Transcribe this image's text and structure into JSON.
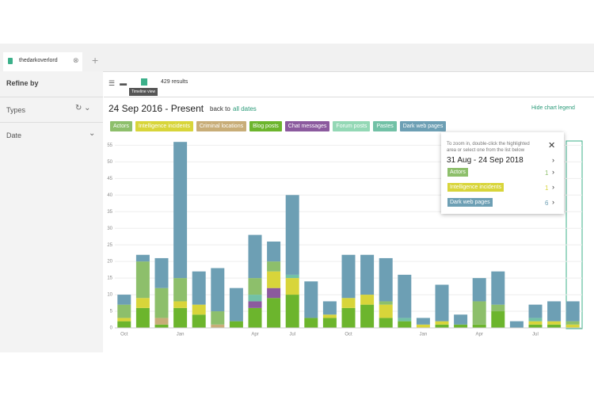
{
  "ui": {
    "tab": "thedarkoverlord",
    "refine_by": "Refine by",
    "filters": [
      "Types",
      "Date"
    ],
    "results": "429 results",
    "tooltip_hint": "Timeline view",
    "date_range": "24 Sep 2016 - Present",
    "back_to": "back to",
    "all_dates": "all dates",
    "hide_legend": "Hide chart legend",
    "popup": {
      "hint": "To zoom in, double-click the highlighted area or select one from the list below",
      "range": "31 Aug - 24 Sep 2018",
      "items": [
        {
          "label": "Actors",
          "count": "1"
        },
        {
          "label": "Intelligence incidents",
          "count": "1"
        },
        {
          "label": "Dark web pages",
          "count": "6"
        }
      ]
    }
  },
  "chart_data": {
    "type": "stacked-bar",
    "categories": [
      "Oct",
      null,
      null,
      "Jan",
      null,
      null,
      null,
      "Apr",
      null,
      "Jul",
      null,
      null,
      "Oct",
      null,
      null,
      null,
      "Jan",
      null,
      null,
      "Apr",
      null,
      null,
      "Jul",
      null,
      null
    ],
    "series": [
      {
        "name": "Actors",
        "color": "#8dbf6b",
        "values": [
          4,
          11,
          9,
          7,
          0,
          4,
          0,
          5,
          3,
          0,
          0,
          0,
          0,
          0,
          1,
          0,
          0,
          0,
          0,
          7,
          2,
          0,
          0,
          0,
          1
        ]
      },
      {
        "name": "Intelligence incidents",
        "color": "#d8d53a",
        "values": [
          1,
          3,
          0,
          2,
          3,
          0,
          0,
          0,
          5,
          5,
          0,
          1,
          3,
          3,
          4,
          0,
          1,
          1,
          0,
          0,
          0,
          0,
          1,
          1,
          1
        ]
      },
      {
        "name": "Criminal locations",
        "color": "#c8ad78",
        "values": [
          0,
          0,
          2,
          0,
          0,
          1,
          0,
          0,
          0,
          0,
          0,
          0,
          0,
          0,
          0,
          0,
          0,
          0,
          0,
          0,
          0,
          0,
          0,
          0,
          0
        ]
      },
      {
        "name": "Blog posts",
        "color": "#6cb52d",
        "values": [
          2,
          6,
          1,
          6,
          4,
          0,
          2,
          6,
          9,
          10,
          3,
          3,
          6,
          7,
          3,
          2,
          0,
          1,
          1,
          1,
          5,
          0,
          1,
          1,
          0
        ]
      },
      {
        "name": "Chat messages",
        "color": "#8b5a9e",
        "values": [
          0,
          0,
          0,
          0,
          0,
          0,
          0,
          2,
          3,
          0,
          0,
          0,
          0,
          0,
          0,
          0,
          0,
          0,
          0,
          0,
          0,
          0,
          0,
          0,
          0
        ]
      },
      {
        "name": "Forum posts",
        "color": "#93d8b5",
        "values": [
          0,
          0,
          0,
          0,
          0,
          0,
          0,
          0,
          0,
          0,
          0,
          0,
          0,
          0,
          0,
          0,
          0,
          0,
          0,
          0,
          0,
          0,
          0,
          0,
          0
        ]
      },
      {
        "name": "Pastes",
        "color": "#72c1a6",
        "values": [
          0,
          0,
          0,
          0,
          0,
          0,
          0,
          2,
          0,
          1,
          0,
          0,
          0,
          0,
          0,
          1,
          0,
          0,
          0,
          0,
          0,
          0,
          1,
          0,
          0
        ]
      },
      {
        "name": "Dark web pages",
        "color": "#6d9fb4",
        "values": [
          3,
          2,
          9,
          41,
          10,
          13,
          10,
          13,
          6,
          24,
          11,
          4,
          13,
          12,
          13,
          13,
          2,
          11,
          3,
          7,
          10,
          2,
          4,
          6,
          6
        ]
      }
    ],
    "stack_order": [
      3,
      4,
      1,
      2,
      5,
      6,
      0,
      7
    ],
    "ylim": [
      0,
      57
    ],
    "yticks": [
      0,
      5,
      10,
      15,
      20,
      25,
      30,
      35,
      40,
      45,
      50,
      55
    ],
    "grid": true
  }
}
